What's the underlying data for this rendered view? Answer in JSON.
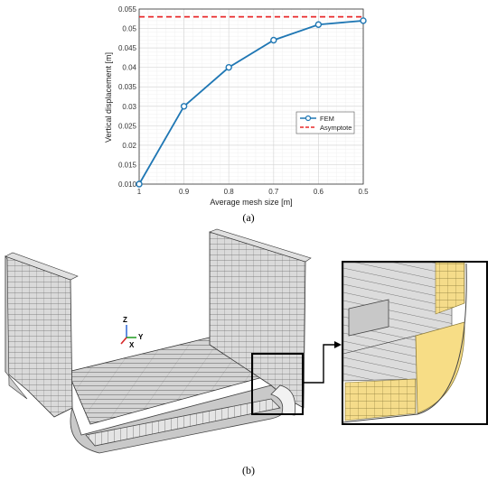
{
  "panel_a": {
    "caption": "(a)"
  },
  "panel_b": {
    "caption": "(b)",
    "axis_triad": {
      "z": "Z",
      "y": "Y",
      "x": "X"
    }
  },
  "chart_data": {
    "type": "line",
    "xlabel": "Average mesh size [m]",
    "ylabel": "Vertical displacement [m]",
    "x_reversed": true,
    "xlim": [
      1,
      0.5
    ],
    "ylim": [
      0.01,
      0.055
    ],
    "x_ticks": [
      "1",
      "0.9",
      "0.8",
      "0.7",
      "0.6",
      "0.5"
    ],
    "y_ticks": [
      "0.010",
      "0.015",
      "0.02",
      "0.025",
      "0.03",
      "0.035",
      "0.04",
      "0.045",
      "0.05",
      "0.055"
    ],
    "grid": true,
    "legend_position": "right",
    "x": [
      1,
      0.9,
      0.8,
      0.7,
      0.6,
      0.5
    ],
    "series": [
      {
        "name": "FEM",
        "values": [
          0.01,
          0.03,
          0.04,
          0.047,
          0.051,
          0.052
        ],
        "color": "#1f77b4",
        "marker": "circle"
      },
      {
        "name": "Asymptote",
        "constant": 0.053,
        "color": "#e8292a",
        "style": "dashed"
      }
    ]
  }
}
